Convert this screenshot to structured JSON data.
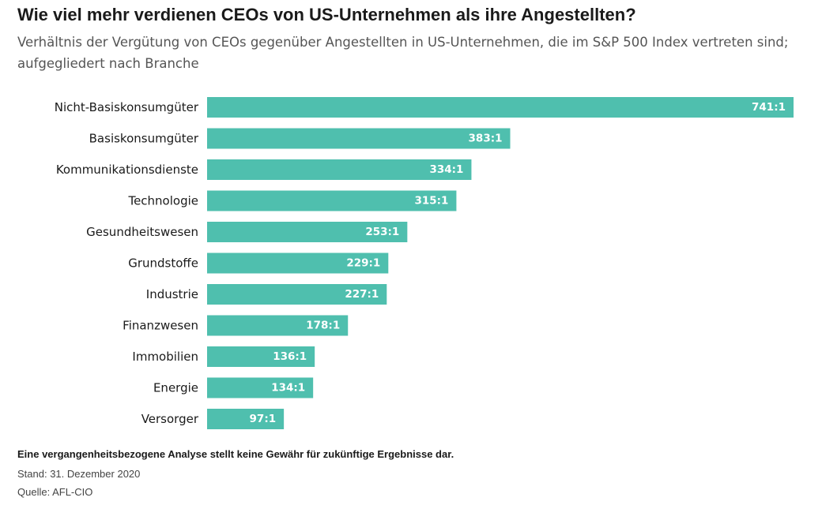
{
  "header": {
    "title": "Wie viel mehr verdienen CEOs von US-Unternehmen als ihre Angestellten?",
    "subtitle": "Verhältnis der Vergütung von CEOs gegenüber Angestellten in US-Unternehmen, die im S&P 500 Index vertreten sind; aufgegliedert nach Branche"
  },
  "chart_data": {
    "type": "bar",
    "orientation": "horizontal",
    "title": "Wie viel mehr verdienen CEOs von US-Unternehmen als ihre Angestellten?",
    "subtitle": "Verhältnis der Vergütung von CEOs gegenüber Angestellten in US-Unternehmen, die im S&P 500 Index vertreten sind; aufgegliedert nach Branche",
    "categories": [
      "Nicht-Basiskonsumgüter",
      "Basiskonsumgüter",
      "Kommunikationsdienste",
      "Technologie",
      "Gesundheitswesen",
      "Grundstoffe",
      "Industrie",
      "Finanzwesen",
      "Immobilien",
      "Energie",
      "Versorger"
    ],
    "values": [
      741,
      383,
      334,
      315,
      253,
      229,
      227,
      178,
      136,
      134,
      97
    ],
    "data_labels": [
      "741:1",
      "383:1",
      "334:1",
      "315:1",
      "253:1",
      "229:1",
      "227:1",
      "178:1",
      "136:1",
      "134:1",
      "97:1"
    ],
    "xlim": [
      0,
      741
    ],
    "bar_color": "#4fbfae",
    "value_label_color": "#ffffff",
    "grid": false,
    "legend": "none"
  },
  "footer": {
    "disclaimer": "Eine vergangenheitsbezogene Analyse stellt keine Gewähr für zukünftige Ergebnisse dar.",
    "date": "Stand: 31. Dezember 2020",
    "source": "Quelle: AFL-CIO"
  }
}
